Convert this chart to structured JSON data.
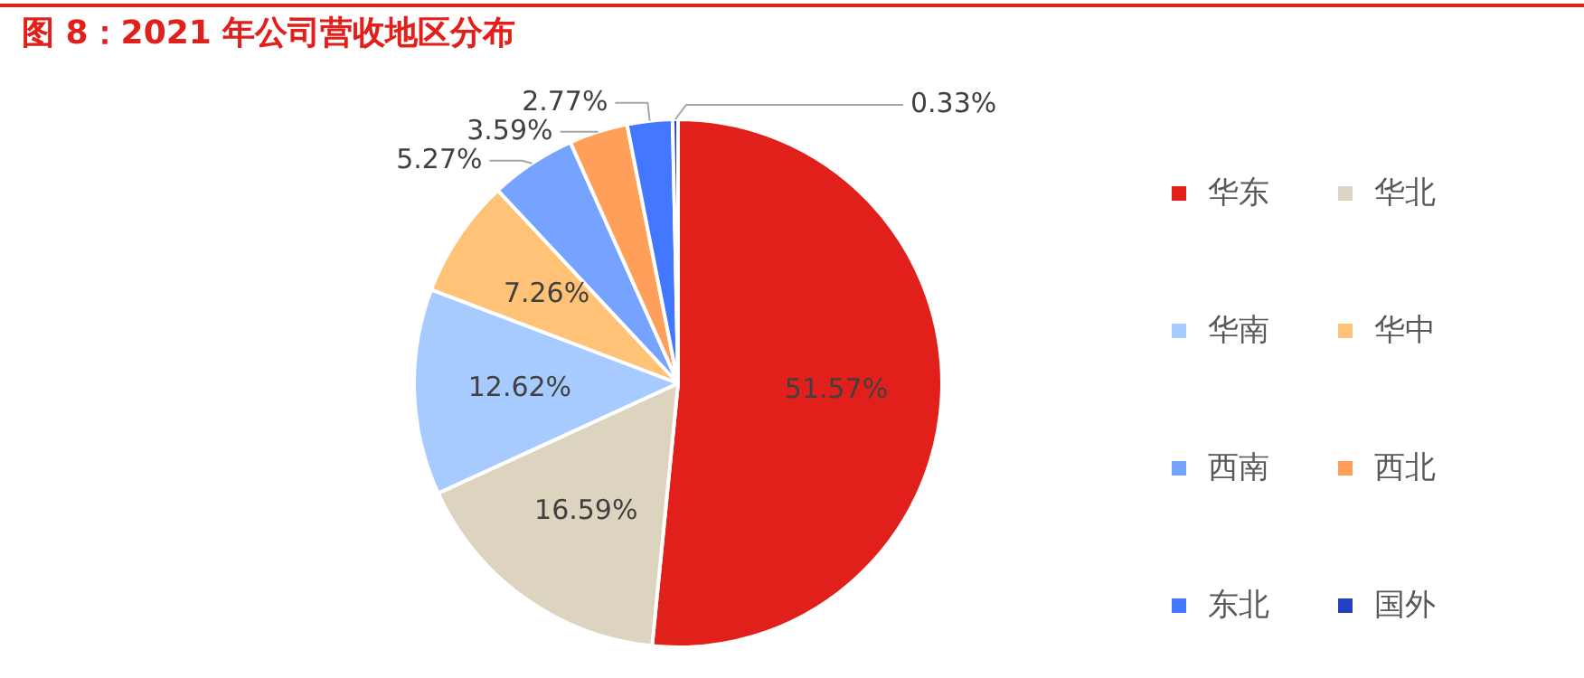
{
  "chart_data": {
    "type": "pie",
    "title": "图 8：2021 年公司营收地区分布",
    "categories": [
      "华东",
      "华北",
      "华南",
      "华中",
      "西南",
      "西北",
      "东北",
      "国外"
    ],
    "values": [
      51.57,
      16.59,
      12.62,
      7.26,
      5.27,
      3.59,
      2.77,
      0.33
    ],
    "value_labels": [
      "51.57%",
      "16.59%",
      "12.62%",
      "7.26%",
      "5.27%",
      "3.59%",
      "2.77%",
      "0.33%"
    ],
    "colors": [
      "#e2201b",
      "#ddd4bf",
      "#a8cbff",
      "#ffc276",
      "#75a3ff",
      "#ff9f5a",
      "#4377ff",
      "#2340c0"
    ],
    "legend": "right"
  }
}
